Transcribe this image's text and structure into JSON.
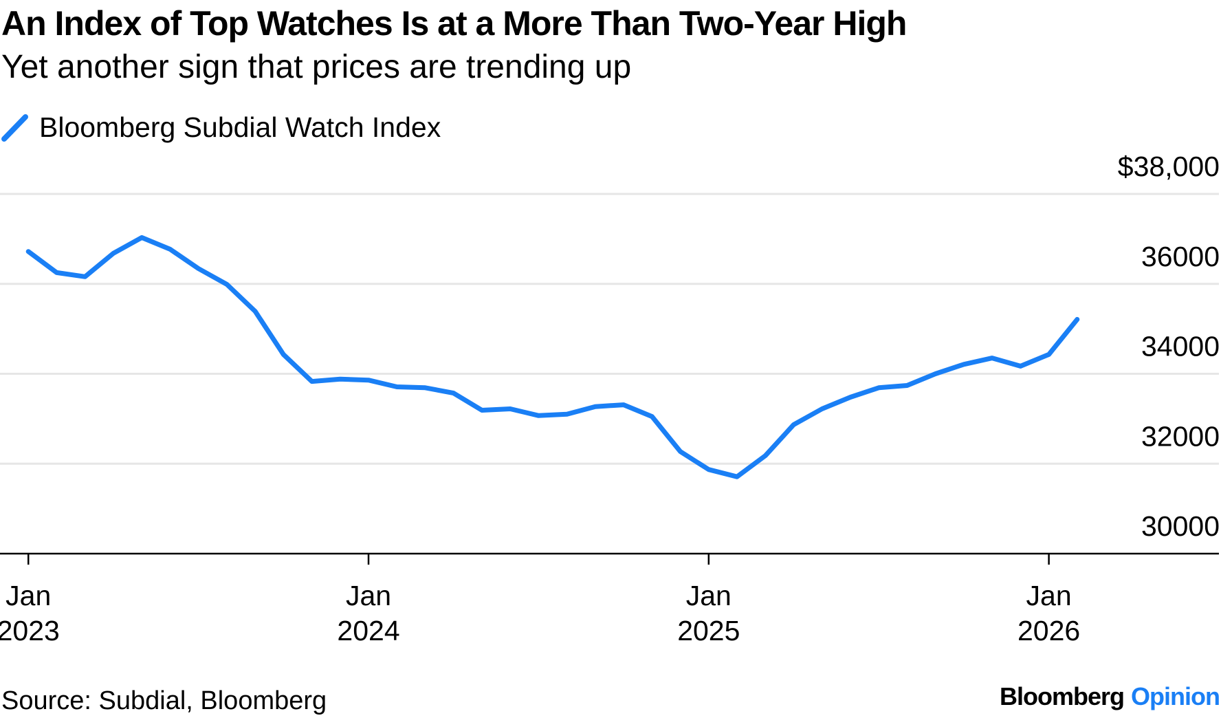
{
  "chart_data": {
    "type": "line",
    "title": "An Index of Top Watches Is at a More Than Two-Year High",
    "subtitle": "Yet another sign that prices are trending up",
    "source": "Source: Subdial, Bloomberg",
    "credit": [
      "Bloomberg",
      "Opinion"
    ],
    "x": [
      "2023-01",
      "2023-02",
      "2023-03",
      "2023-04",
      "2023-05",
      "2023-06",
      "2023-07",
      "2023-08",
      "2023-09",
      "2023-10",
      "2023-11",
      "2023-12",
      "2024-01",
      "2024-02",
      "2024-03",
      "2024-04",
      "2024-05",
      "2024-06",
      "2024-07",
      "2024-08",
      "2024-09",
      "2024-10",
      "2024-11",
      "2024-12",
      "2025-01",
      "2025-02",
      "2025-03",
      "2025-04",
      "2025-05",
      "2025-06",
      "2025-07",
      "2025-08",
      "2025-09",
      "2025-10",
      "2025-11",
      "2025-12",
      "2026-01",
      "2026-02"
    ],
    "series": [
      {
        "name": "Bloomberg Subdial Watch Index",
        "color": "#1a7ff5",
        "values": [
          36720,
          36250,
          36160,
          36680,
          37030,
          36770,
          36340,
          35990,
          35390,
          34430,
          33830,
          33880,
          33860,
          33710,
          33690,
          33570,
          33190,
          33220,
          33070,
          33100,
          33270,
          33310,
          33050,
          32270,
          31870,
          31710,
          32180,
          32870,
          33220,
          33480,
          33690,
          33740,
          34000,
          34210,
          34350,
          34170,
          34430,
          35210
        ]
      }
    ],
    "xlim": [
      "2022-12",
      "2026-07"
    ],
    "xticks": [
      {
        "value": "2023-01",
        "label": [
          "Jan",
          "2023"
        ]
      },
      {
        "value": "2024-01",
        "label": [
          "Jan",
          "2024"
        ]
      },
      {
        "value": "2025-01",
        "label": [
          "Jan",
          "2025"
        ]
      },
      {
        "value": "2026-01",
        "label": [
          "Jan",
          "2026"
        ]
      }
    ],
    "ylim": [
      30000,
      38000
    ],
    "yticks": [
      30000,
      32000,
      34000,
      36000,
      {
        "value": 38000,
        "label": "$38,000"
      }
    ],
    "grid": true
  }
}
